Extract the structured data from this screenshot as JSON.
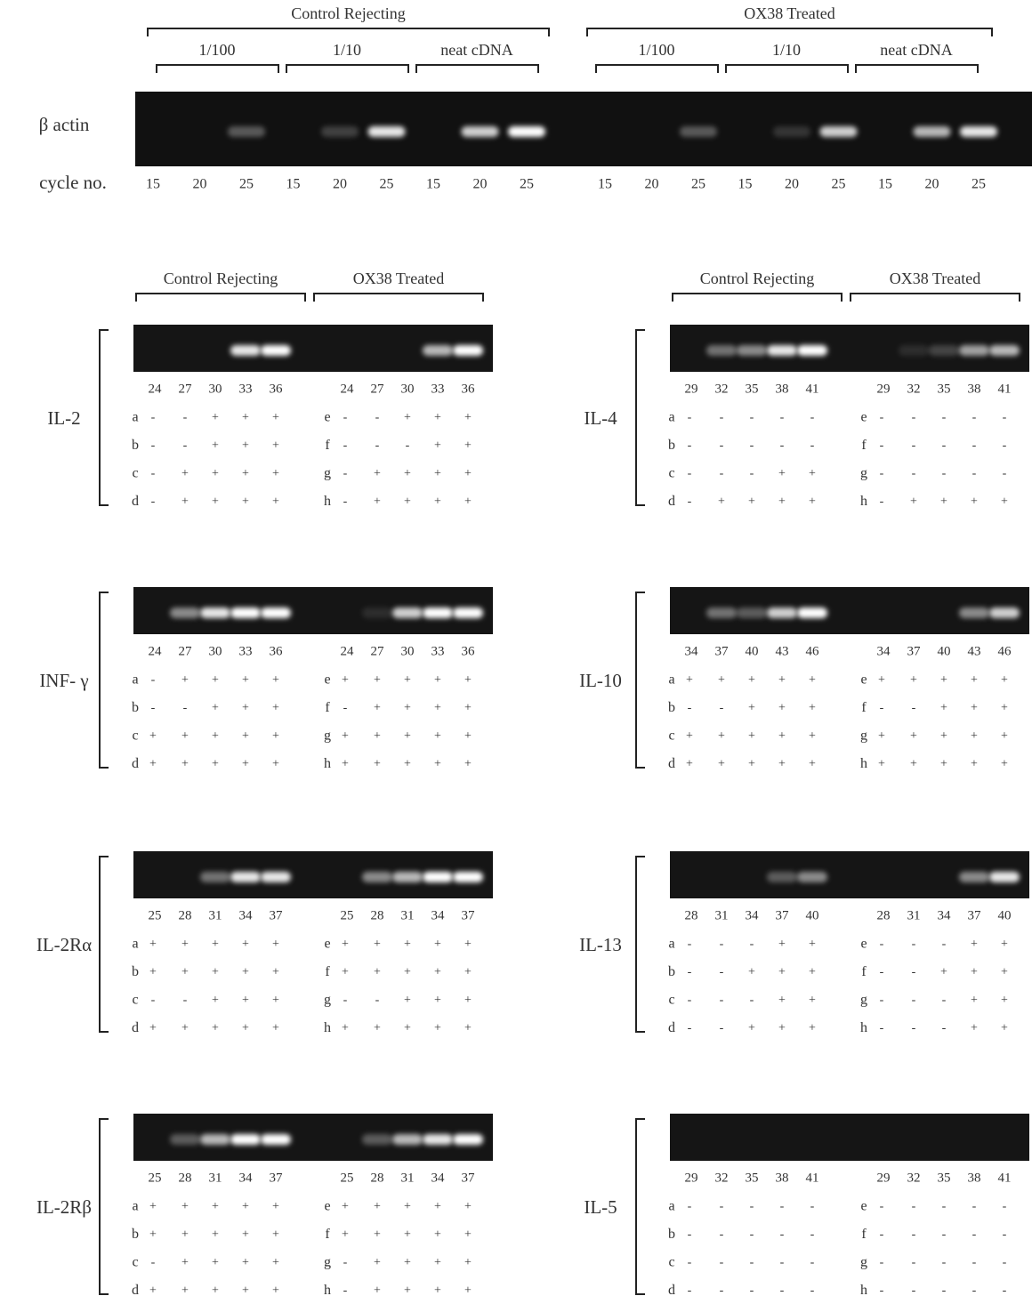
{
  "top": {
    "groups": [
      {
        "title": "Control Rejecting",
        "dilutions": [
          {
            "label": "1/100",
            "cycles": [
              15,
              20,
              25
            ]
          },
          {
            "label": "1/10",
            "cycles": [
              15,
              20,
              25
            ]
          },
          {
            "label": "neat cDNA",
            "cycles": [
              15,
              20,
              25
            ]
          }
        ]
      },
      {
        "title": "OX38 Treated",
        "dilutions": [
          {
            "label": "1/100",
            "cycles": [
              15,
              20,
              25
            ]
          },
          {
            "label": "1/10",
            "cycles": [
              15,
              20,
              25
            ]
          },
          {
            "label": "neat cDNA",
            "cycles": [
              15,
              20,
              25
            ]
          }
        ]
      }
    ],
    "row_label": "β actin",
    "cycle_label": "cycle no."
  },
  "columns": [
    {
      "headers": [
        "Control Rejecting",
        "OX38 Treated"
      ],
      "panels": [
        {
          "gene": "IL-2",
          "cycles": [
            24,
            27,
            30,
            33,
            36
          ],
          "groups": [
            {
              "rows": [
                {
                  "id": "a",
                  "marks": [
                    "-",
                    "-",
                    "+",
                    "+",
                    "+"
                  ]
                },
                {
                  "id": "b",
                  "marks": [
                    "-",
                    "-",
                    "+",
                    "+",
                    "+"
                  ]
                },
                {
                  "id": "c",
                  "marks": [
                    "-",
                    "+",
                    "+",
                    "+",
                    "+"
                  ]
                },
                {
                  "id": "d",
                  "marks": [
                    "-",
                    "+",
                    "+",
                    "+",
                    "+"
                  ]
                }
              ]
            },
            {
              "rows": [
                {
                  "id": "e",
                  "marks": [
                    "-",
                    "-",
                    "+",
                    "+",
                    "+"
                  ]
                },
                {
                  "id": "f",
                  "marks": [
                    "-",
                    "-",
                    "-",
                    "+",
                    "+"
                  ]
                },
                {
                  "id": "g",
                  "marks": [
                    "-",
                    "+",
                    "+",
                    "+",
                    "+"
                  ]
                },
                {
                  "id": "h",
                  "marks": [
                    "-",
                    "+",
                    "+",
                    "+",
                    "+"
                  ]
                }
              ]
            }
          ]
        },
        {
          "gene": "INF- γ",
          "cycles": [
            24,
            27,
            30,
            33,
            36
          ],
          "groups": [
            {
              "rows": [
                {
                  "id": "a",
                  "marks": [
                    "-",
                    "+",
                    "+",
                    "+",
                    "+"
                  ]
                },
                {
                  "id": "b",
                  "marks": [
                    "-",
                    "-",
                    "+",
                    "+",
                    "+"
                  ]
                },
                {
                  "id": "c",
                  "marks": [
                    "+",
                    "+",
                    "+",
                    "+",
                    "+"
                  ]
                },
                {
                  "id": "d",
                  "marks": [
                    "+",
                    "+",
                    "+",
                    "+",
                    "+"
                  ]
                }
              ]
            },
            {
              "rows": [
                {
                  "id": "e",
                  "marks": [
                    "+",
                    "+",
                    "+",
                    "+",
                    "+"
                  ]
                },
                {
                  "id": "f",
                  "marks": [
                    "-",
                    "+",
                    "+",
                    "+",
                    "+"
                  ]
                },
                {
                  "id": "g",
                  "marks": [
                    "+",
                    "+",
                    "+",
                    "+",
                    "+"
                  ]
                },
                {
                  "id": "h",
                  "marks": [
                    "+",
                    "+",
                    "+",
                    "+",
                    "+"
                  ]
                }
              ]
            }
          ]
        },
        {
          "gene": "IL-2Rα",
          "cycles": [
            25,
            28,
            31,
            34,
            37
          ],
          "groups": [
            {
              "rows": [
                {
                  "id": "a",
                  "marks": [
                    "+",
                    "+",
                    "+",
                    "+",
                    "+"
                  ]
                },
                {
                  "id": "b",
                  "marks": [
                    "+",
                    "+",
                    "+",
                    "+",
                    "+"
                  ]
                },
                {
                  "id": "c",
                  "marks": [
                    "-",
                    "-",
                    "+",
                    "+",
                    "+"
                  ]
                },
                {
                  "id": "d",
                  "marks": [
                    "+",
                    "+",
                    "+",
                    "+",
                    "+"
                  ]
                }
              ]
            },
            {
              "rows": [
                {
                  "id": "e",
                  "marks": [
                    "+",
                    "+",
                    "+",
                    "+",
                    "+"
                  ]
                },
                {
                  "id": "f",
                  "marks": [
                    "+",
                    "+",
                    "+",
                    "+",
                    "+"
                  ]
                },
                {
                  "id": "g",
                  "marks": [
                    "-",
                    "-",
                    "+",
                    "+",
                    "+"
                  ]
                },
                {
                  "id": "h",
                  "marks": [
                    "+",
                    "+",
                    "+",
                    "+",
                    "+"
                  ]
                }
              ]
            }
          ]
        },
        {
          "gene": "IL-2Rβ",
          "cycles": [
            25,
            28,
            31,
            34,
            37
          ],
          "groups": [
            {
              "rows": [
                {
                  "id": "a",
                  "marks": [
                    "+",
                    "+",
                    "+",
                    "+",
                    "+"
                  ]
                },
                {
                  "id": "b",
                  "marks": [
                    "+",
                    "+",
                    "+",
                    "+",
                    "+"
                  ]
                },
                {
                  "id": "c",
                  "marks": [
                    "-",
                    "+",
                    "+",
                    "+",
                    "+"
                  ]
                },
                {
                  "id": "d",
                  "marks": [
                    "+",
                    "+",
                    "+",
                    "+",
                    "+"
                  ]
                }
              ]
            },
            {
              "rows": [
                {
                  "id": "e",
                  "marks": [
                    "+",
                    "+",
                    "+",
                    "+",
                    "+"
                  ]
                },
                {
                  "id": "f",
                  "marks": [
                    "+",
                    "+",
                    "+",
                    "+",
                    "+"
                  ]
                },
                {
                  "id": "g",
                  "marks": [
                    "-",
                    "+",
                    "+",
                    "+",
                    "+"
                  ]
                },
                {
                  "id": "h",
                  "marks": [
                    "-",
                    "+",
                    "+",
                    "+",
                    "+"
                  ]
                }
              ]
            }
          ]
        }
      ]
    },
    {
      "headers": [
        "Control Rejecting",
        "OX38 Treated"
      ],
      "panels": [
        {
          "gene": "IL-4",
          "cycles": [
            29,
            32,
            35,
            38,
            41
          ],
          "groups": [
            {
              "rows": [
                {
                  "id": "a",
                  "marks": [
                    "-",
                    "-",
                    "-",
                    "-",
                    "-"
                  ]
                },
                {
                  "id": "b",
                  "marks": [
                    "-",
                    "-",
                    "-",
                    "-",
                    "-"
                  ]
                },
                {
                  "id": "c",
                  "marks": [
                    "-",
                    "-",
                    "-",
                    "+",
                    "+"
                  ]
                },
                {
                  "id": "d",
                  "marks": [
                    "-",
                    "+",
                    "+",
                    "+",
                    "+"
                  ]
                }
              ]
            },
            {
              "rows": [
                {
                  "id": "e",
                  "marks": [
                    "-",
                    "-",
                    "-",
                    "-",
                    "-"
                  ]
                },
                {
                  "id": "f",
                  "marks": [
                    "-",
                    "-",
                    "-",
                    "-",
                    "-"
                  ]
                },
                {
                  "id": "g",
                  "marks": [
                    "-",
                    "-",
                    "-",
                    "-",
                    "-"
                  ]
                },
                {
                  "id": "h",
                  "marks": [
                    "-",
                    "+",
                    "+",
                    "+",
                    "+"
                  ]
                }
              ]
            }
          ]
        },
        {
          "gene": "IL-10",
          "cycles": [
            34,
            37,
            40,
            43,
            46
          ],
          "groups": [
            {
              "rows": [
                {
                  "id": "a",
                  "marks": [
                    "+",
                    "+",
                    "+",
                    "+",
                    "+"
                  ]
                },
                {
                  "id": "b",
                  "marks": [
                    "-",
                    "-",
                    "+",
                    "+",
                    "+"
                  ]
                },
                {
                  "id": "c",
                  "marks": [
                    "+",
                    "+",
                    "+",
                    "+",
                    "+"
                  ]
                },
                {
                  "id": "d",
                  "marks": [
                    "+",
                    "+",
                    "+",
                    "+",
                    "+"
                  ]
                }
              ]
            },
            {
              "rows": [
                {
                  "id": "e",
                  "marks": [
                    "+",
                    "+",
                    "+",
                    "+",
                    "+"
                  ]
                },
                {
                  "id": "f",
                  "marks": [
                    "-",
                    "-",
                    "+",
                    "+",
                    "+"
                  ]
                },
                {
                  "id": "g",
                  "marks": [
                    "+",
                    "+",
                    "+",
                    "+",
                    "+"
                  ]
                },
                {
                  "id": "h",
                  "marks": [
                    "+",
                    "+",
                    "+",
                    "+",
                    "+"
                  ]
                }
              ]
            }
          ]
        },
        {
          "gene": "IL-13",
          "cycles": [
            28,
            31,
            34,
            37,
            40
          ],
          "groups": [
            {
              "rows": [
                {
                  "id": "a",
                  "marks": [
                    "-",
                    "-",
                    "-",
                    "+",
                    "+"
                  ]
                },
                {
                  "id": "b",
                  "marks": [
                    "-",
                    "-",
                    "+",
                    "+",
                    "+"
                  ]
                },
                {
                  "id": "c",
                  "marks": [
                    "-",
                    "-",
                    "-",
                    "+",
                    "+"
                  ]
                },
                {
                  "id": "d",
                  "marks": [
                    "-",
                    "-",
                    "+",
                    "+",
                    "+"
                  ]
                }
              ]
            },
            {
              "rows": [
                {
                  "id": "e",
                  "marks": [
                    "-",
                    "-",
                    "-",
                    "+",
                    "+"
                  ]
                },
                {
                  "id": "f",
                  "marks": [
                    "-",
                    "-",
                    "+",
                    "+",
                    "+"
                  ]
                },
                {
                  "id": "g",
                  "marks": [
                    "-",
                    "-",
                    "-",
                    "+",
                    "+"
                  ]
                },
                {
                  "id": "h",
                  "marks": [
                    "-",
                    "-",
                    "-",
                    "+",
                    "+"
                  ]
                }
              ]
            }
          ]
        },
        {
          "gene": "IL-5",
          "cycles": [
            29,
            32,
            35,
            38,
            41
          ],
          "groups": [
            {
              "rows": [
                {
                  "id": "a",
                  "marks": [
                    "-",
                    "-",
                    "-",
                    "-",
                    "-"
                  ]
                },
                {
                  "id": "b",
                  "marks": [
                    "-",
                    "-",
                    "-",
                    "-",
                    "-"
                  ]
                },
                {
                  "id": "c",
                  "marks": [
                    "-",
                    "-",
                    "-",
                    "-",
                    "-"
                  ]
                },
                {
                  "id": "d",
                  "marks": [
                    "-",
                    "-",
                    "-",
                    "-",
                    "-"
                  ]
                }
              ]
            },
            {
              "rows": [
                {
                  "id": "e",
                  "marks": [
                    "-",
                    "-",
                    "-",
                    "-",
                    "-"
                  ]
                },
                {
                  "id": "f",
                  "marks": [
                    "-",
                    "-",
                    "-",
                    "-",
                    "-"
                  ]
                },
                {
                  "id": "g",
                  "marks": [
                    "-",
                    "-",
                    "-",
                    "-",
                    "-"
                  ]
                },
                {
                  "id": "h",
                  "marks": [
                    "-",
                    "-",
                    "-",
                    "-",
                    "-"
                  ]
                }
              ]
            }
          ]
        }
      ]
    }
  ]
}
